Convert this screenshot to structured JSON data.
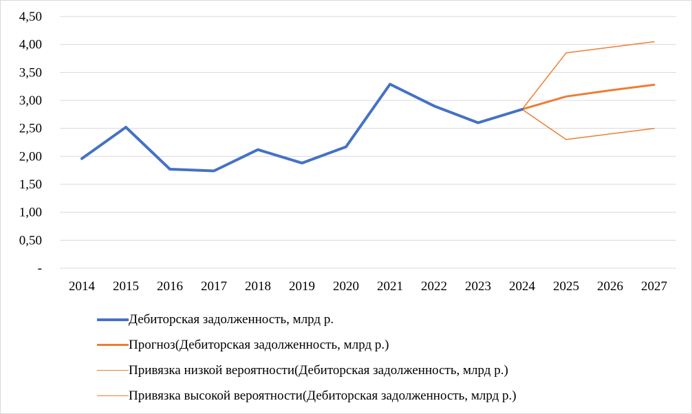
{
  "chart_data": {
    "type": "line",
    "x": [
      "2014",
      "2015",
      "2016",
      "2017",
      "2018",
      "2019",
      "2020",
      "2021",
      "2022",
      "2023",
      "2024",
      "2025",
      "2026",
      "2027"
    ],
    "y_ticks": [
      "-",
      "0,50",
      "1,00",
      "1,50",
      "2,00",
      "2,50",
      "3,00",
      "3,50",
      "4,00",
      "4,50"
    ],
    "ylim": [
      0,
      4.5
    ],
    "grid": "horizontal",
    "legend_position": "bottom",
    "series": [
      {
        "name": "Дебиторская задолженность, млрд р.",
        "color": "#4472c4",
        "width": "thick",
        "x": [
          "2014",
          "2015",
          "2016",
          "2017",
          "2018",
          "2019",
          "2020",
          "2021",
          "2022",
          "2023",
          "2024"
        ],
        "values": [
          1.96,
          2.52,
          1.77,
          1.74,
          2.12,
          1.88,
          2.17,
          3.29,
          2.9,
          2.6,
          2.84
        ]
      },
      {
        "name": "Прогноз(Дебиторская задолженность, млрд р.)",
        "color": "#ed7d31",
        "width": "medium",
        "x": [
          "2024",
          "2025",
          "2026",
          "2027"
        ],
        "values": [
          2.84,
          3.07,
          3.18,
          3.28
        ]
      },
      {
        "name": "Привязка низкой вероятности(Дебиторская задолженность, млрд р.)",
        "color": "#ed7d31",
        "width": "thin",
        "x": [
          "2024",
          "2025",
          "2026",
          "2027"
        ],
        "values": [
          2.84,
          2.3,
          2.4,
          2.5
        ]
      },
      {
        "name": "Привязка высокой вероятности(Дебиторская задолженность, млрд р.)",
        "color": "#ed7d31",
        "width": "thin",
        "x": [
          "2024",
          "2025",
          "2026",
          "2027"
        ],
        "values": [
          2.84,
          3.85,
          3.95,
          4.05
        ]
      }
    ]
  }
}
